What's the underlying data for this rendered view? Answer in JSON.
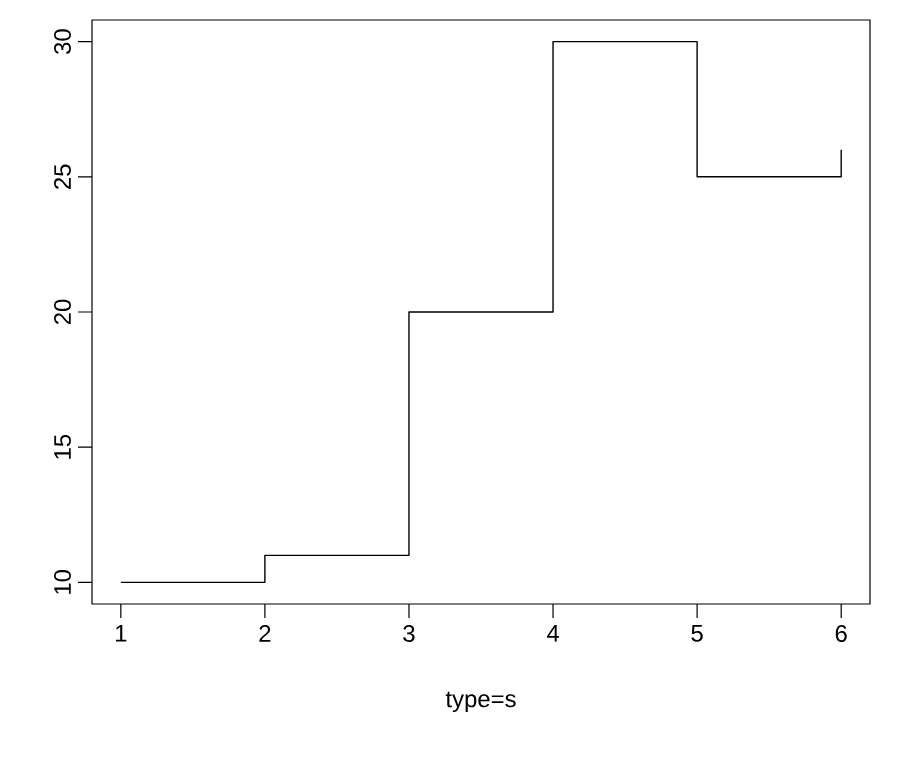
{
  "chart_data": {
    "type": "step",
    "xlabel": "type=s",
    "x": [
      1,
      2,
      3,
      4,
      5,
      6
    ],
    "values": [
      10,
      11,
      20,
      30,
      25,
      26
    ],
    "color": "#000000",
    "xlim": [
      0.8,
      6.2
    ],
    "ylim": [
      9.2,
      30.8
    ],
    "xticks": [
      1,
      2,
      3,
      4,
      5,
      6
    ],
    "yticks": [
      10,
      15,
      20,
      25,
      30
    ]
  }
}
